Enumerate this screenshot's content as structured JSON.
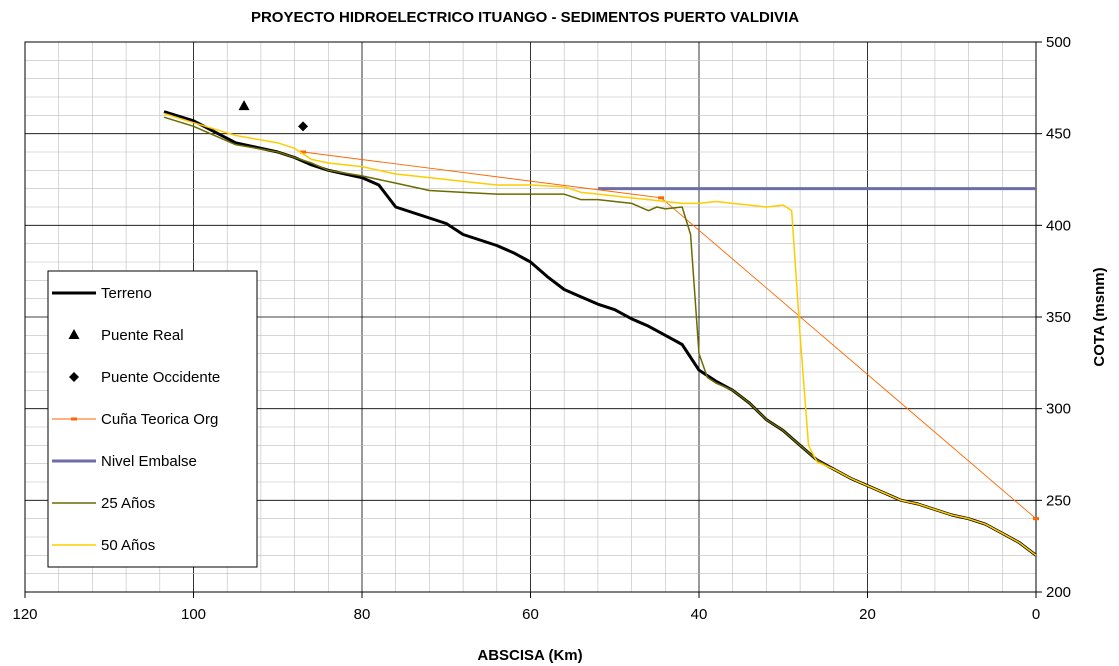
{
  "chart_data": {
    "type": "line",
    "title": "PROYECTO HIDROELECTRICO ITUANGO - SEDIMENTOS PUERTO VALDIVIA",
    "xlabel": "ABSCISA (Km)",
    "ylabel": "COTA (msnm)",
    "xlim": [
      120,
      0
    ],
    "ylim": [
      200,
      500
    ],
    "x_reversed": true,
    "y_axis_side": "right",
    "x_ticks": [
      120,
      100,
      80,
      60,
      40,
      20,
      0
    ],
    "y_ticks": [
      200,
      250,
      300,
      350,
      400,
      450,
      500
    ],
    "grid": true,
    "legend_position": "left",
    "series": [
      {
        "name": "Terreno",
        "color": "#000000",
        "style": "line",
        "x": [
          103.5,
          100,
          95,
          90,
          88,
          86,
          84,
          82,
          80,
          78,
          76,
          74,
          72,
          70,
          68,
          66,
          64,
          62,
          60,
          58,
          56,
          54,
          52,
          50,
          48,
          46,
          44,
          42,
          40,
          38,
          36,
          34,
          32,
          30,
          28,
          26,
          24,
          22,
          20,
          18,
          16,
          14,
          12,
          10,
          8,
          6,
          4,
          2,
          0
        ],
        "y": [
          462,
          457,
          445,
          440,
          437,
          433,
          430,
          428,
          426,
          422,
          410,
          407,
          404,
          401,
          395,
          392,
          389,
          385,
          380,
          372,
          365,
          361,
          357,
          354,
          349,
          345,
          340,
          335,
          321,
          315,
          310,
          303,
          294,
          288,
          280,
          272,
          267,
          262,
          258,
          254,
          250,
          248,
          245,
          242,
          240,
          237,
          232,
          227,
          220
        ]
      },
      {
        "name": "Puente Real",
        "color": "#000000",
        "style": "marker-triangle",
        "x": [
          94
        ],
        "y": [
          465
        ]
      },
      {
        "name": "Puente Occidente",
        "color": "#000000",
        "style": "marker-diamond",
        "x": [
          87
        ],
        "y": [
          454
        ]
      },
      {
        "name": "Cuña Teorica Org",
        "color": "#FF6600",
        "style": "line-dash-marker",
        "x": [
          87,
          44.5,
          0
        ],
        "y": [
          440,
          415,
          240
        ]
      },
      {
        "name": "Nivel Embalse",
        "color": "#6D6DA8",
        "style": "thick-line",
        "x": [
          52,
          0
        ],
        "y": [
          420,
          420
        ]
      },
      {
        "name": "25 Años",
        "color": "#6B6B00",
        "style": "line",
        "x": [
          103.5,
          100,
          95,
          90,
          88,
          86,
          84,
          80,
          76,
          72,
          68,
          64,
          60,
          56,
          54,
          52,
          50,
          48,
          46,
          45,
          44,
          42,
          41,
          40,
          39,
          38,
          36,
          34,
          32,
          30,
          28,
          26,
          24,
          22,
          20,
          18,
          16,
          14,
          12,
          10,
          8,
          6,
          4,
          2,
          0
        ],
        "y": [
          459,
          454,
          444,
          440,
          437,
          434,
          430,
          427,
          423,
          419,
          418,
          417,
          417,
          417,
          414,
          414,
          413,
          412,
          408,
          410,
          409,
          410,
          395,
          330,
          317,
          314,
          310,
          303,
          294,
          288,
          280,
          272,
          267,
          262,
          258,
          254,
          250,
          248,
          245,
          242,
          240,
          237,
          232,
          227,
          220
        ]
      },
      {
        "name": "50 Años",
        "color": "#FFCC00",
        "style": "line",
        "x": [
          103.5,
          100,
          95,
          90,
          88,
          86,
          84,
          80,
          76,
          72,
          68,
          64,
          60,
          56,
          54,
          52,
          50,
          48,
          46,
          44,
          42,
          40,
          38,
          36,
          34,
          32,
          30,
          29,
          28,
          27,
          26,
          24,
          22,
          20,
          18,
          16,
          14,
          12,
          10,
          8,
          6,
          4,
          2,
          0
        ],
        "y": [
          461,
          456,
          449,
          445,
          442,
          436,
          434,
          432,
          428,
          426,
          424,
          422,
          422,
          421,
          418,
          417,
          416,
          415,
          414,
          413,
          412,
          412,
          413,
          412,
          411,
          410,
          411,
          408,
          340,
          280,
          271,
          267,
          262,
          258,
          254,
          250,
          248,
          245,
          242,
          240,
          237,
          232,
          227,
          220
        ]
      }
    ]
  }
}
